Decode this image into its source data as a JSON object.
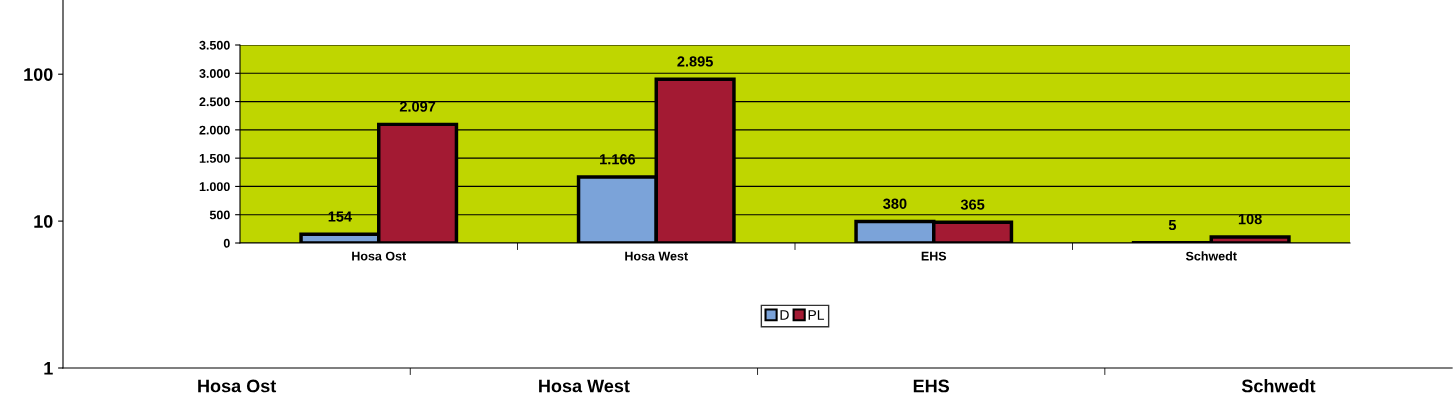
{
  "chart_data": [
    {
      "type": "bar",
      "categories": [
        "Hosa Ost",
        "Hosa West",
        "EHS",
        "Schwedt"
      ],
      "values": [
        null,
        null,
        null,
        null
      ],
      "log": true,
      "ylim": [
        1,
        320
      ],
      "yticks": [
        1,
        10,
        100
      ],
      "legend": false
    },
    {
      "type": "bar",
      "categories": [
        "Hosa Ost",
        "Hosa West",
        "EHS",
        "Schwedt"
      ],
      "series": [
        {
          "name": "D",
          "color": "#7ba3d9",
          "values": [
            154,
            1166,
            380,
            5
          ],
          "value_labels": [
            "154",
            "1.166",
            "380",
            "5"
          ]
        },
        {
          "name": "PL",
          "color": "#a31a33",
          "values": [
            2097,
            2895,
            365,
            108
          ],
          "value_labels": [
            "2.097",
            "2.895",
            "365",
            "108"
          ]
        }
      ],
      "ylim": [
        0,
        3500
      ],
      "yticks": [
        {
          "value": 0,
          "label": "0"
        },
        {
          "value": 500,
          "label": "500"
        },
        {
          "value": 1000,
          "label": "1.000"
        },
        {
          "value": 1500,
          "label": "1.500"
        },
        {
          "value": 2000,
          "label": "2.000"
        },
        {
          "value": 2500,
          "label": "2.500"
        },
        {
          "value": 3000,
          "label": "3.000"
        },
        {
          "value": 3500,
          "label": "3.500"
        }
      ],
      "grid": "y",
      "legend": "bottom"
    }
  ]
}
